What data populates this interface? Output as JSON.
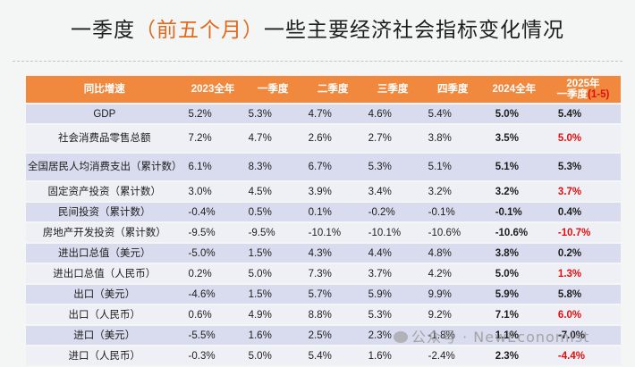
{
  "title_prefix": "一季度",
  "title_accent": "（前五个月）",
  "title_suffix": "一些主要经济社会指标变化情况",
  "headers": [
    "同比增速",
    "2023全年",
    "一季度",
    "二季度",
    "三季度",
    "四季度",
    "2024全年"
  ],
  "header_last_line1": "2025年",
  "header_last_line2": "一季度",
  "header_last_accent": "(1-5)",
  "rows": [
    {
      "name": "GDP",
      "values": [
        "5.2%",
        "5.3%",
        "4.7%",
        "4.6%",
        "5.4%",
        "5.0%",
        "5.4%"
      ],
      "last_red": false
    },
    {
      "name": "社会消费品零售总额",
      "values": [
        "7.2%",
        "4.7%",
        "2.6%",
        "2.7%",
        "3.8%",
        "3.5%",
        "5.0%"
      ],
      "last_red": true
    },
    {
      "name": "全国居民人均消费支出（累计数）",
      "values": [
        "6.1%",
        "8.3%",
        "6.7%",
        "5.3%",
        "5.1%",
        "5.1%",
        "5.3%"
      ],
      "last_red": false
    },
    {
      "name": "固定资产投资（累计数）",
      "values": [
        "3.0%",
        "4.5%",
        "3.9%",
        "3.4%",
        "3.2%",
        "3.2%",
        "3.7%"
      ],
      "last_red": true
    },
    {
      "name": "民间投资（累计数）",
      "values": [
        "-0.4%",
        "0.5%",
        "0.1%",
        "-0.2%",
        "-0.1%",
        "-0.1%",
        "0.4%"
      ],
      "last_red": false
    },
    {
      "name": "房地产开发投资（累计数）",
      "values": [
        "-9.5%",
        "-9.5%",
        "-10.1%",
        "-10.1%",
        "-10.6%",
        "-10.6%",
        "-10.7%"
      ],
      "last_red": true
    },
    {
      "name": "进出口总值（美元）",
      "values": [
        "-5.0%",
        "1.5%",
        "4.3%",
        "4.4%",
        "4.8%",
        "3.8%",
        "0.2%"
      ],
      "last_red": false
    },
    {
      "name": "进出口总值（人民币）",
      "values": [
        "0.2%",
        "5.0%",
        "7.3%",
        "3.7%",
        "4.2%",
        "5.0%",
        "1.3%"
      ],
      "last_red": true
    },
    {
      "name": "出口（美元）",
      "values": [
        "-4.6%",
        "1.5%",
        "5.7%",
        "5.9%",
        "9.9%",
        "5.9%",
        "5.8%"
      ],
      "last_red": false
    },
    {
      "name": "出口（人民币）",
      "values": [
        "0.6%",
        "4.9%",
        "8.8%",
        "5.3%",
        "9.2%",
        "7.1%",
        "6.0%"
      ],
      "last_red": true
    },
    {
      "name": "进口（美元）",
      "values": [
        "-5.5%",
        "1.6%",
        "2.5%",
        "2.3%",
        "-1.8%",
        "1.1%",
        "-7.0%"
      ],
      "last_red": false
    },
    {
      "name": "进口（人民币）",
      "values": [
        "-0.3%",
        "5.0%",
        "5.4%",
        "1.6%",
        "-2.4%",
        "2.3%",
        "-4.4%"
      ],
      "last_red": true
    }
  ],
  "watermark": "公众号 · NewEconomist"
}
